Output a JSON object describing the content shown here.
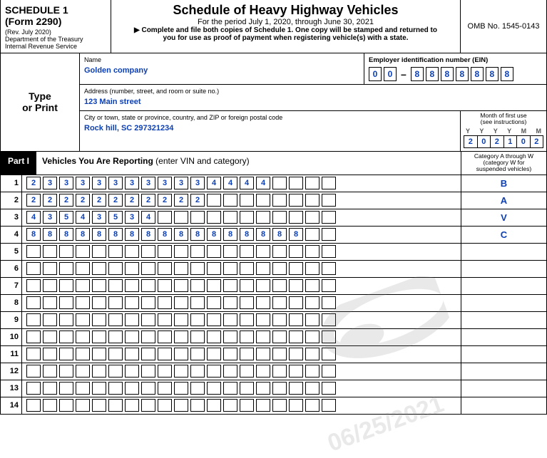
{
  "header": {
    "schedule": "SCHEDULE 1",
    "form": "(Form 2290)",
    "rev": "(Rev. July 2020)",
    "dept1": "Department of the Treasury",
    "dept2": "Internal Revenue Service",
    "title": "Schedule of Heavy Highway Vehicles",
    "period": "For the period July 1, 2020, through June 30, 2021",
    "note1": "Complete and file both copies of Schedule 1. One copy will be stamped and returned to",
    "note2": "you for use as proof of payment when registering vehicle(s) with a state.",
    "omb": "OMB No. 1545-0143"
  },
  "type_or_print": "Type\nor Print",
  "fields": {
    "name_label": "Name",
    "name_value": "Golden company",
    "ein_label": "Employer identification number (EIN)",
    "ein_digits": [
      "0",
      "0",
      "8",
      "8",
      "8",
      "8",
      "8",
      "8",
      "8"
    ],
    "addr_label": "Address (number, street, and room or suite no.)",
    "addr_value": "123 Main street",
    "city_label": "City or town, state or province, country, and ZIP or foreign postal code",
    "city_value": "Rock hill, SC  297321234",
    "mfu_title1": "Month of first use",
    "mfu_title2": "(see instructions)",
    "mfu_letters": [
      "Y",
      "Y",
      "Y",
      "Y",
      "M",
      "M"
    ],
    "mfu_digits": [
      "2",
      "0",
      "2",
      "1",
      "0",
      "2"
    ]
  },
  "part": {
    "tag": "Part I",
    "title_bold": "Vehicles You Are Reporting",
    "title_rest": " (enter VIN and category)",
    "cat_header1": "Category A through W",
    "cat_header2": "(category W for",
    "cat_header3": "suspended vehicles)"
  },
  "vin_box_count": 19,
  "rows": [
    {
      "n": "1",
      "vin": [
        "2",
        "3",
        "3",
        "3",
        "3",
        "3",
        "3",
        "3",
        "3",
        "3",
        "3",
        "4",
        "4",
        "4",
        "4"
      ],
      "cat": "B"
    },
    {
      "n": "2",
      "vin": [
        "2",
        "2",
        "2",
        "2",
        "2",
        "2",
        "2",
        "2",
        "2",
        "2",
        "2"
      ],
      "cat": "A"
    },
    {
      "n": "3",
      "vin": [
        "4",
        "3",
        "5",
        "4",
        "3",
        "5",
        "3",
        "4"
      ],
      "cat": "V"
    },
    {
      "n": "4",
      "vin": [
        "8",
        "8",
        "8",
        "8",
        "8",
        "8",
        "8",
        "8",
        "8",
        "8",
        "8",
        "8",
        "8",
        "8",
        "8",
        "8",
        "8"
      ],
      "cat": "C"
    },
    {
      "n": "5",
      "vin": [],
      "cat": ""
    },
    {
      "n": "6",
      "vin": [],
      "cat": ""
    },
    {
      "n": "7",
      "vin": [],
      "cat": ""
    },
    {
      "n": "8",
      "vin": [],
      "cat": ""
    },
    {
      "n": "9",
      "vin": [],
      "cat": ""
    },
    {
      "n": "10",
      "vin": [],
      "cat": ""
    },
    {
      "n": "11",
      "vin": [],
      "cat": ""
    },
    {
      "n": "12",
      "vin": [],
      "cat": ""
    },
    {
      "n": "13",
      "vin": [],
      "cat": ""
    },
    {
      "n": "14",
      "vin": [],
      "cat": ""
    }
  ],
  "watermark": {
    "date": "06/25/2021"
  }
}
